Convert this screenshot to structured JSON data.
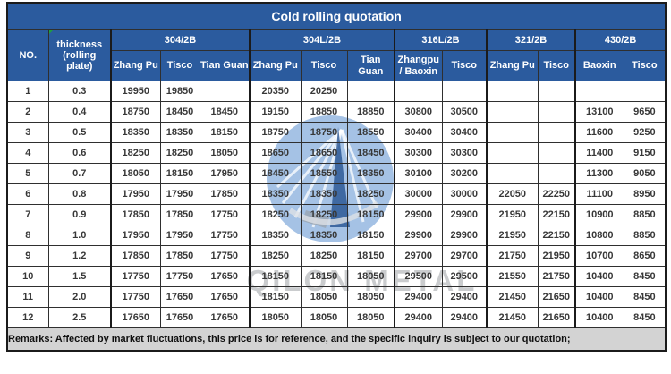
{
  "title": "Cold rolling quotation",
  "colors": {
    "header_blue": "#2b5b9e",
    "remarks_gray": "#d3d3d3",
    "watermark_blue": "#7fa8da"
  },
  "icons": {
    "watermark_logo": "globe-bridge-logo-watermark",
    "comment_marker": "green-corner-triangle"
  },
  "watermark": {
    "text": "QILON METAL"
  },
  "header": {
    "no_label": "NO.",
    "thickness_line1": "thickness",
    "thickness_line2": "(rolling plate)",
    "groups": [
      {
        "label": "304/2B",
        "cols": [
          "Zhang Pu",
          "Tisco",
          "Tian Guan"
        ]
      },
      {
        "label": "304L/2B",
        "cols": [
          "Zhang Pu",
          "Tisco",
          "Tian Guan"
        ]
      },
      {
        "label": "316L/2B",
        "cols": [
          "Zhangpu / Baoxin",
          "Tisco"
        ]
      },
      {
        "label": "321/2B",
        "cols": [
          "Zhang Pu",
          "Tisco"
        ]
      },
      {
        "label": "430/2B",
        "cols": [
          "Baoxin",
          "Tisco"
        ]
      }
    ]
  },
  "rows": [
    {
      "no": "1",
      "thickness": "0.3",
      "values": [
        "19950",
        "19850",
        "",
        "20350",
        "20250",
        "",
        "",
        "",
        "",
        "",
        "",
        ""
      ]
    },
    {
      "no": "2",
      "thickness": "0.4",
      "values": [
        "18750",
        "18450",
        "18450",
        "19150",
        "18850",
        "18850",
        "30800",
        "30500",
        "",
        "",
        "13100",
        "9650"
      ]
    },
    {
      "no": "3",
      "thickness": "0.5",
      "values": [
        "18350",
        "18350",
        "18150",
        "18750",
        "18750",
        "18550",
        "30400",
        "30400",
        "",
        "",
        "11600",
        "9250"
      ]
    },
    {
      "no": "4",
      "thickness": "0.6",
      "values": [
        "18250",
        "18250",
        "18050",
        "18650",
        "18650",
        "18450",
        "30300",
        "30300",
        "",
        "",
        "11400",
        "9150"
      ]
    },
    {
      "no": "5",
      "thickness": "0.7",
      "values": [
        "18050",
        "18150",
        "17950",
        "18450",
        "18550",
        "18350",
        "30100",
        "30200",
        "",
        "",
        "11300",
        "9050"
      ]
    },
    {
      "no": "6",
      "thickness": "0.8",
      "values": [
        "17950",
        "17950",
        "17850",
        "18350",
        "18350",
        "18250",
        "30000",
        "30000",
        "22050",
        "22250",
        "11100",
        "8950"
      ]
    },
    {
      "no": "7",
      "thickness": "0.9",
      "values": [
        "17850",
        "17850",
        "17750",
        "18250",
        "18250",
        "18150",
        "29900",
        "29900",
        "21950",
        "22150",
        "10900",
        "8850"
      ]
    },
    {
      "no": "8",
      "thickness": "1.0",
      "values": [
        "17950",
        "17950",
        "17750",
        "18350",
        "18350",
        "18150",
        "29900",
        "29900",
        "21950",
        "22150",
        "10800",
        "8850"
      ]
    },
    {
      "no": "9",
      "thickness": "1.2",
      "values": [
        "17850",
        "17850",
        "17750",
        "18250",
        "18250",
        "18150",
        "29700",
        "29700",
        "21750",
        "21950",
        "10700",
        "8650"
      ]
    },
    {
      "no": "10",
      "thickness": "1.5",
      "values": [
        "17750",
        "17750",
        "17650",
        "18150",
        "18150",
        "18050",
        "29500",
        "29500",
        "21550",
        "21750",
        "10400",
        "8450"
      ]
    },
    {
      "no": "11",
      "thickness": "2.0",
      "values": [
        "17750",
        "17650",
        "17650",
        "18150",
        "18050",
        "18050",
        "29400",
        "29400",
        "21450",
        "21650",
        "10400",
        "8450"
      ]
    },
    {
      "no": "12",
      "thickness": "2.5",
      "values": [
        "17650",
        "17650",
        "17650",
        "18050",
        "18050",
        "18050",
        "29400",
        "29400",
        "21450",
        "21650",
        "10400",
        "8450"
      ]
    }
  ],
  "remarks": "Remarks: Affected by market fluctuations, this price is for reference, and the specific inquiry is subject to our quotation;"
}
